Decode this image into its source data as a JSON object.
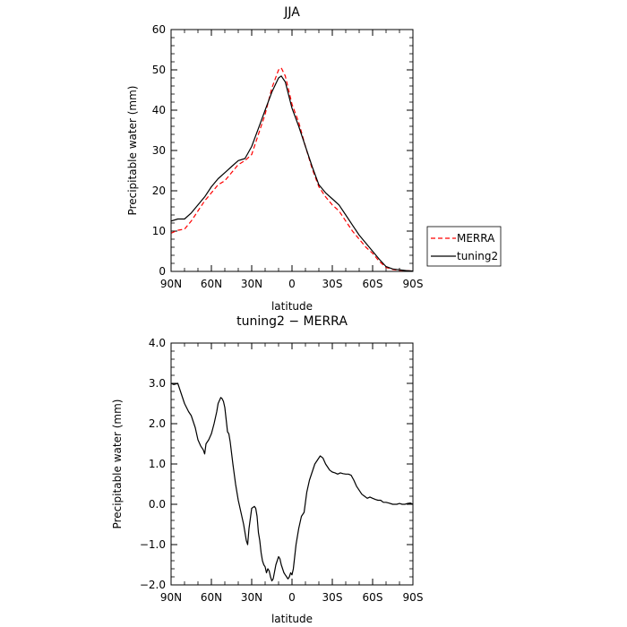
{
  "chart_data": [
    {
      "type": "line",
      "title": "JJA",
      "xlabel": "latitude",
      "ylabel": "Precipitable water (mm)",
      "xlim": [
        90,
        -90
      ],
      "ylim": [
        0,
        60
      ],
      "x_ticks": [
        90,
        60,
        30,
        0,
        -30,
        -60,
        -90
      ],
      "x_tick_labels": [
        "90N",
        "60N",
        "30N",
        "0",
        "30S",
        "60S",
        "90S"
      ],
      "y_ticks": [
        0,
        10,
        20,
        30,
        40,
        50,
        60
      ],
      "y_tick_labels": [
        "0",
        "10",
        "20",
        "30",
        "40",
        "50",
        "60"
      ],
      "legend": {
        "placement": "right",
        "entries": [
          "MERRA",
          "tuning2"
        ]
      },
      "series": [
        {
          "name": "MERRA",
          "color": "#ff0000",
          "dash": "dashed",
          "x": [
            90,
            85,
            80,
            75,
            70,
            65,
            60,
            55,
            50,
            45,
            40,
            35,
            30,
            25,
            20,
            15,
            10,
            8,
            5,
            0,
            -5,
            -10,
            -15,
            -20,
            -25,
            -30,
            -35,
            -40,
            -45,
            -50,
            -55,
            -60,
            -65,
            -70,
            -75,
            -80,
            -85,
            -90
          ],
          "y": [
            9.5,
            10.2,
            10.5,
            12.5,
            15,
            17.5,
            19.5,
            21.5,
            22.5,
            24.5,
            26.5,
            27.5,
            29,
            34,
            39,
            45.5,
            50,
            50.5,
            48.5,
            41.5,
            37,
            31,
            25.5,
            21,
            18.5,
            16.5,
            15,
            12.5,
            10,
            8,
            6,
            4.5,
            2.5,
            1,
            0.5,
            0.3,
            0.2,
            0.1
          ]
        },
        {
          "name": "tuning2",
          "color": "#000000",
          "dash": "solid",
          "x": [
            90,
            85,
            80,
            75,
            70,
            65,
            60,
            55,
            50,
            45,
            40,
            35,
            30,
            25,
            20,
            15,
            10,
            8,
            5,
            0,
            -5,
            -10,
            -15,
            -20,
            -25,
            -30,
            -35,
            -40,
            -45,
            -50,
            -55,
            -60,
            -65,
            -70,
            -75,
            -80,
            -85,
            -90
          ],
          "y": [
            12.5,
            13,
            13,
            14.5,
            16.5,
            18.5,
            21,
            23,
            24.5,
            26,
            27.5,
            28,
            31,
            35.5,
            40,
            44.5,
            48,
            48.5,
            47,
            40.5,
            36,
            31,
            26,
            21.5,
            19.5,
            18,
            16.5,
            14,
            11.5,
            9,
            7,
            5,
            3,
            1.2,
            0.6,
            0.4,
            0.2,
            0.1
          ]
        }
      ]
    },
    {
      "type": "line",
      "title": "tuning2 − MERRA",
      "xlabel": "latitude",
      "ylabel": "Precipitable water (mm)",
      "xlim": [
        90,
        -90
      ],
      "ylim": [
        -2,
        4
      ],
      "x_ticks": [
        90,
        60,
        30,
        0,
        -30,
        -60,
        -90
      ],
      "x_tick_labels": [
        "90N",
        "60N",
        "30N",
        "0",
        "30S",
        "60S",
        "90S"
      ],
      "y_ticks": [
        -2,
        -1,
        0,
        1,
        2,
        3,
        4
      ],
      "y_tick_labels": [
        "−2.0",
        "−1.0",
        "0.0",
        "1.0",
        "2.0",
        "3.0",
        "4.0"
      ],
      "series": [
        {
          "color": "#000000",
          "dash": "solid",
          "x": [
            90,
            88,
            85,
            83,
            80,
            77,
            75,
            72,
            70,
            68,
            66,
            65,
            64,
            62,
            60,
            58,
            56,
            55,
            53,
            52,
            51,
            50,
            49,
            48,
            47,
            46,
            44,
            42,
            40,
            38,
            36,
            35,
            34,
            33,
            32,
            30,
            28,
            27,
            26,
            25,
            24,
            23,
            22,
            21,
            20,
            19,
            18,
            17,
            16,
            15,
            14,
            12,
            10,
            9,
            8,
            7,
            6,
            5,
            4,
            3,
            2,
            1,
            0,
            -1,
            -2,
            -3,
            -4,
            -5,
            -7,
            -9,
            -11,
            -13,
            -15,
            -17,
            -19,
            -21,
            -23,
            -25,
            -27,
            -28,
            -30,
            -32,
            -34,
            -36,
            -38,
            -40,
            -42,
            -44,
            -46,
            -48,
            -50,
            -52,
            -54,
            -56,
            -58,
            -60,
            -62,
            -64,
            -66,
            -68,
            -70,
            -72,
            -75,
            -78,
            -80,
            -82,
            -84,
            -86,
            -88,
            -90
          ],
          "y": [
            3.0,
            2.97,
            3.0,
            2.8,
            2.5,
            2.3,
            2.2,
            1.9,
            1.6,
            1.45,
            1.35,
            1.25,
            1.5,
            1.6,
            1.75,
            2.0,
            2.3,
            2.5,
            2.65,
            2.62,
            2.55,
            2.4,
            2.1,
            1.8,
            1.75,
            1.55,
            1.0,
            0.5,
            0.1,
            -0.2,
            -0.5,
            -0.7,
            -0.9,
            -1.0,
            -0.6,
            -0.1,
            -0.05,
            -0.1,
            -0.3,
            -0.7,
            -0.9,
            -1.2,
            -1.4,
            -1.5,
            -1.55,
            -1.7,
            -1.6,
            -1.65,
            -1.8,
            -1.9,
            -1.85,
            -1.5,
            -1.3,
            -1.35,
            -1.5,
            -1.6,
            -1.7,
            -1.75,
            -1.8,
            -1.85,
            -1.8,
            -1.7,
            -1.75,
            -1.6,
            -1.3,
            -1.0,
            -0.8,
            -0.6,
            -0.3,
            -0.2,
            0.3,
            0.6,
            0.8,
            1.0,
            1.1,
            1.2,
            1.15,
            1.0,
            0.9,
            0.85,
            0.8,
            0.78,
            0.75,
            0.78,
            0.76,
            0.75,
            0.75,
            0.72,
            0.6,
            0.45,
            0.35,
            0.25,
            0.2,
            0.15,
            0.18,
            0.15,
            0.12,
            0.1,
            0.1,
            0.05,
            0.05,
            0.03,
            0.0,
            0.0,
            0.02,
            0.0,
            0.0,
            0.02,
            0.03,
            0.0
          ]
        }
      ]
    }
  ]
}
